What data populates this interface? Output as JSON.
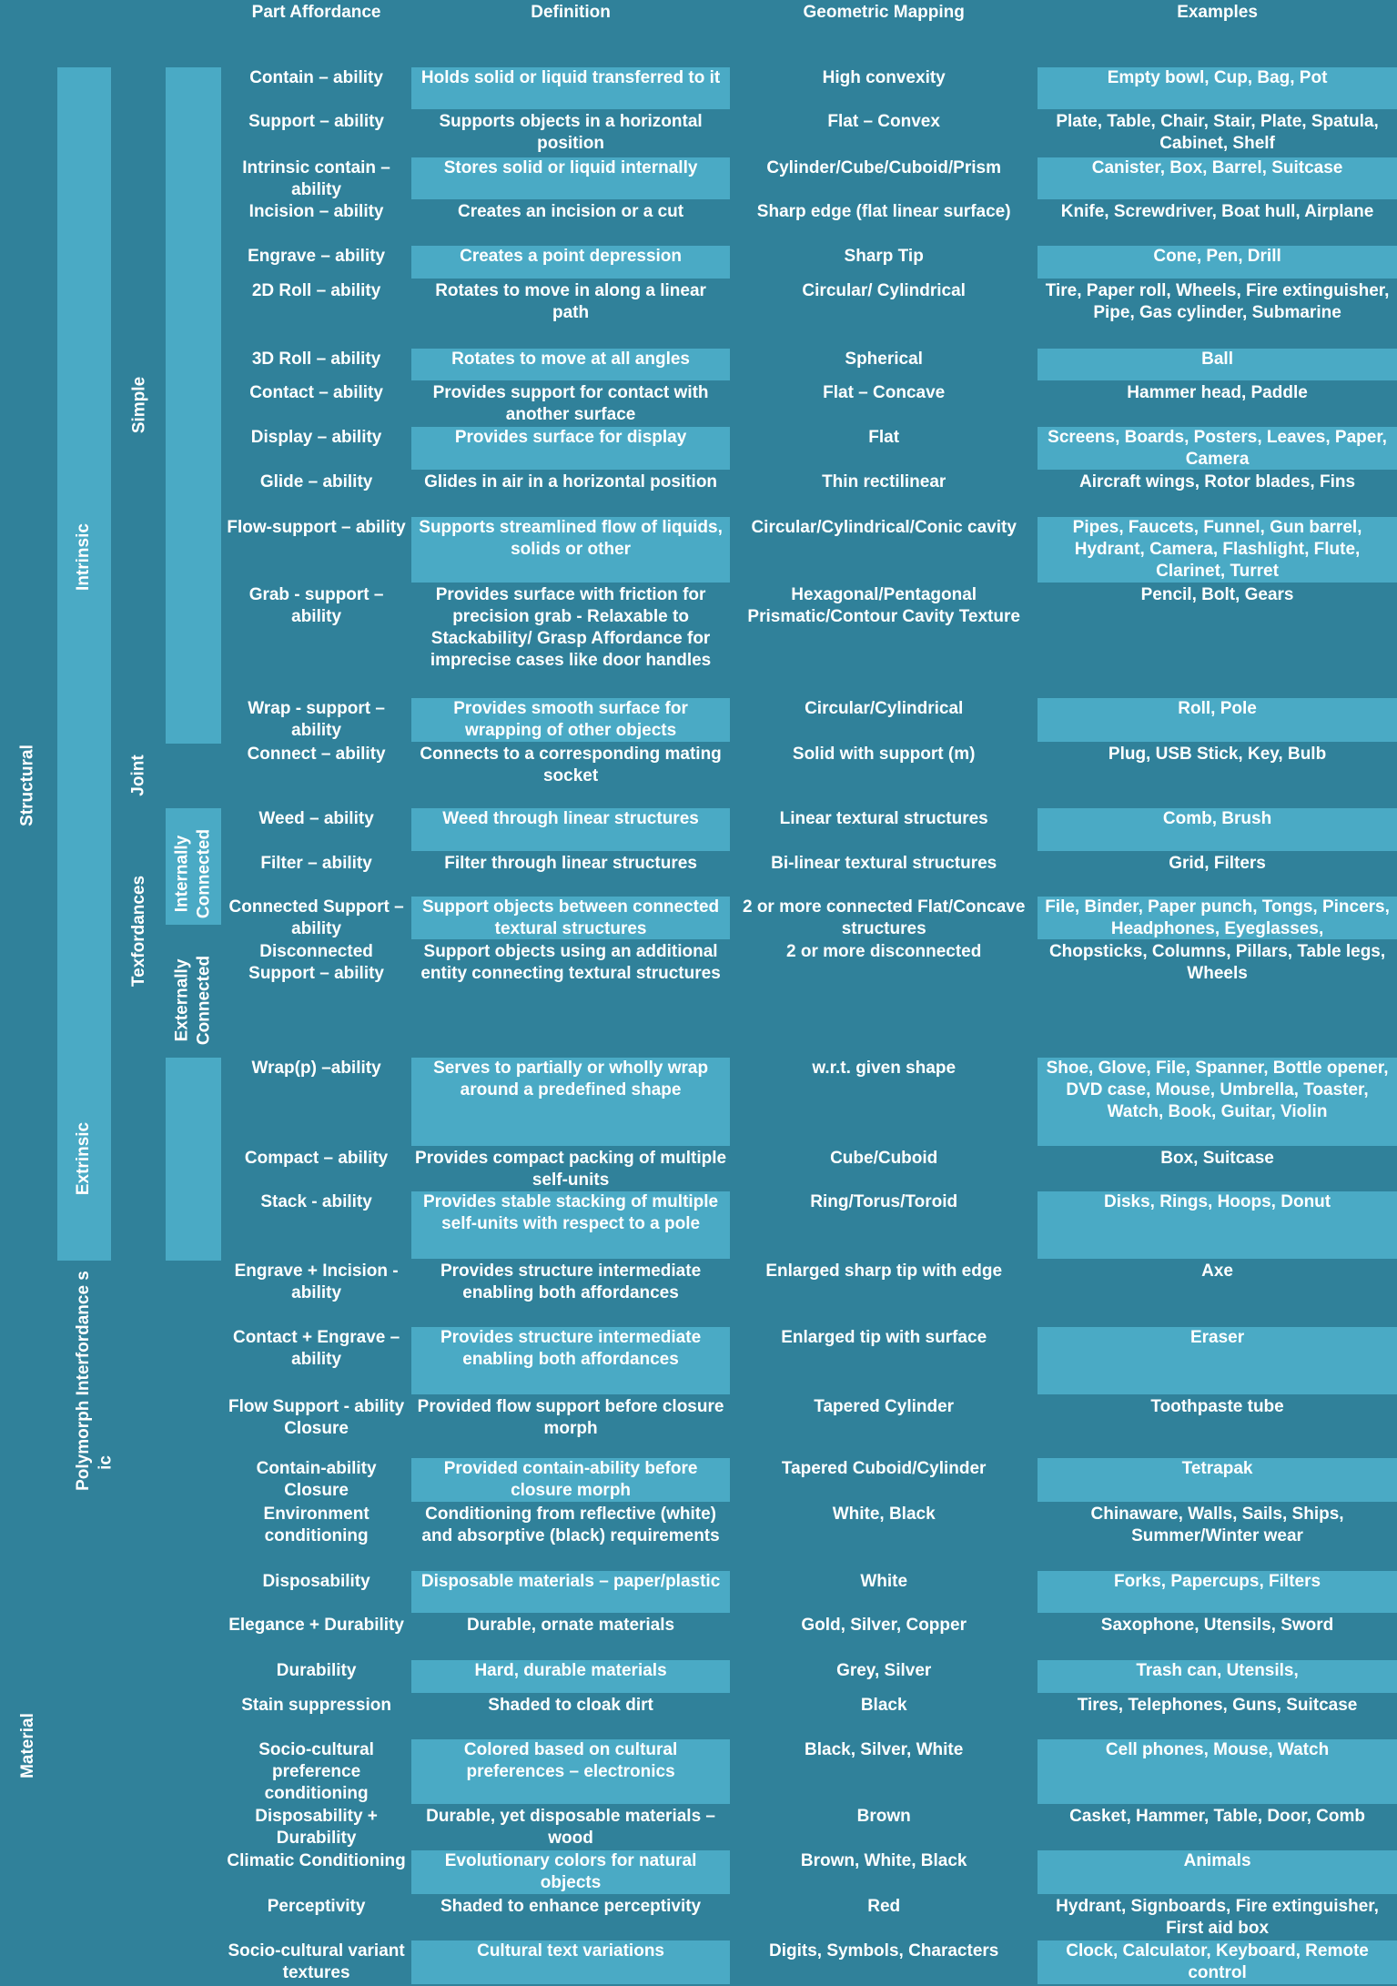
{
  "header": {
    "columns": [
      "Part Affordance",
      "Definition",
      "Geometric Mapping",
      "Examples"
    ]
  },
  "side_labels": {
    "level1": [
      "Structural",
      "Material"
    ],
    "level2": [
      "Intrinsic",
      "Extrinsic",
      "Polymorph Interfordance s",
      "ic"
    ],
    "level3": [
      "Simple",
      "Joint",
      "Texfordances"
    ],
    "level4": [
      "Internally Connected",
      "Externally Connected"
    ]
  },
  "rows": [
    {
      "part": "Contain – ability",
      "definition": "Holds solid or liquid transferred to it",
      "mapping": "High convexity",
      "examples": "Empty bowl, Cup, Bag, Pot"
    },
    {
      "part": "Support – ability",
      "definition": "Supports objects in a horizontal position",
      "mapping": "Flat – Convex",
      "examples": "Plate, Table, Chair, Stair, Plate, Spatula, Cabinet, Shelf"
    },
    {
      "part": "Intrinsic contain –ability",
      "definition": "Stores solid or liquid internally",
      "mapping": "Cylinder/Cube/Cuboid/Prism",
      "examples": "Canister, Box, Barrel, Suitcase"
    },
    {
      "part": "Incision – ability",
      "definition": "Creates an incision or a cut",
      "mapping": "Sharp edge (flat linear surface)",
      "examples": "Knife, Screwdriver, Boat hull, Airplane"
    },
    {
      "part": "Engrave – ability",
      "definition": "Creates a point depression",
      "mapping": "Sharp Tip",
      "examples": "Cone, Pen, Drill"
    },
    {
      "part": "2D Roll – ability",
      "definition": "Rotates to move in along a linear path",
      "mapping": "Circular/ Cylindrical",
      "examples": "Tire, Paper roll, Wheels, Fire extinguisher, Pipe, Gas cylinder, Submarine"
    },
    {
      "part": "3D Roll – ability",
      "definition": "Rotates to move at all angles",
      "mapping": "Spherical",
      "examples": "Ball"
    },
    {
      "part": "Contact – ability",
      "definition": "Provides support for contact with another surface",
      "mapping": "Flat – Concave",
      "examples": "Hammer head, Paddle"
    },
    {
      "part": "Display – ability",
      "definition": "Provides surface for display",
      "mapping": "Flat",
      "examples": "Screens, Boards, Posters, Leaves, Paper, Camera"
    },
    {
      "part": "Glide – ability",
      "definition": "Glides in air in a horizontal position",
      "mapping": "Thin rectilinear",
      "examples": "Aircraft wings, Rotor blades, Fins"
    },
    {
      "part": "Flow-support – ability",
      "definition": "Supports streamlined flow of liquids, solids or other",
      "mapping": "Circular/Cylindrical/Conic cavity",
      "examples": "Pipes, Faucets, Funnel, Gun barrel, Hydrant, Camera, Flashlight, Flute, Clarinet, Turret"
    },
    {
      "part": "Grab - support – ability",
      "definition": "Provides surface with friction for precision grab - Relaxable to Stackability/ Grasp Affordance for imprecise cases like door handles",
      "mapping": "Hexagonal/Pentagonal Prismatic/Contour Cavity Texture",
      "examples": "Pencil, Bolt, Gears"
    },
    {
      "part": "Wrap - support – ability",
      "definition": "Provides smooth surface for wrapping of other objects",
      "mapping": "Circular/Cylindrical",
      "examples": "Roll, Pole"
    },
    {
      "part": "Connect – ability",
      "definition": "Connects to a corresponding mating socket",
      "mapping": "Solid with support (m)",
      "examples": "Plug, USB Stick, Key, Bulb"
    },
    {
      "part": "Weed – ability",
      "definition": "Weed through linear structures",
      "mapping": "Linear textural structures",
      "examples": "Comb, Brush"
    },
    {
      "part": "Filter – ability",
      "definition": "Filter through linear structures",
      "mapping": "Bi-linear textural structures",
      "examples": "Grid, Filters"
    },
    {
      "part": "Connected Support – ability",
      "definition": "Support objects between connected textural structures",
      "mapping": "2 or more connected Flat/Concave structures",
      "examples": "File, Binder, Paper punch, Tongs, Pincers, Headphones, Eyeglasses,"
    },
    {
      "part": "Disconnected Support – ability",
      "definition": "Support objects using an additional entity connecting textural structures",
      "mapping": "2 or more disconnected",
      "examples": "Chopsticks, Columns, Pillars, Table legs, Wheels"
    },
    {
      "part": "Wrap(p) –ability",
      "definition": "Serves to partially or wholly wrap around a predefined shape",
      "mapping": "w.r.t. given shape",
      "examples": "Shoe, Glove, File, Spanner, Bottle opener, DVD case, Mouse, Umbrella, Toaster, Watch, Book, Guitar, Violin"
    },
    {
      "part": "Compact – ability",
      "definition": "Provides compact packing of multiple self-units",
      "mapping": "Cube/Cuboid",
      "examples": "Box, Suitcase"
    },
    {
      "part": "Stack - ability",
      "definition": "Provides stable stacking of multiple self-units with respect to a pole",
      "mapping": "Ring/Torus/Toroid",
      "examples": "Disks, Rings, Hoops, Donut"
    },
    {
      "part": "Engrave + Incision - ability",
      "definition": "Provides structure intermediate enabling both affordances",
      "mapping": "Enlarged sharp tip with edge",
      "examples": "Axe"
    },
    {
      "part": "Contact + Engrave – ability",
      "definition": "Provides structure intermediate enabling both affordances",
      "mapping": "Enlarged tip with surface",
      "examples": "Eraser"
    },
    {
      "part": "Flow Support - ability Closure",
      "definition": "Provided flow support before closure morph",
      "mapping": "Tapered Cylinder",
      "examples": "Toothpaste tube"
    },
    {
      "part": "Contain-ability Closure",
      "definition": "Provided contain-ability before closure morph",
      "mapping": "Tapered Cuboid/Cylinder",
      "examples": "Tetrapak"
    },
    {
      "part": "Environment conditioning",
      "definition": "Conditioning from reflective (white) and absorptive (black) requirements",
      "mapping": "White, Black",
      "examples": "Chinaware, Walls, Sails, Ships, Summer/Winter wear"
    },
    {
      "part": "Disposability",
      "definition": "Disposable materials – paper/plastic",
      "mapping": "White",
      "examples": "Forks, Papercups, Filters"
    },
    {
      "part": "Elegance + Durability",
      "definition": "Durable, ornate materials",
      "mapping": "Gold, Silver, Copper",
      "examples": "Saxophone, Utensils, Sword"
    },
    {
      "part": "Durability",
      "definition": "Hard, durable materials",
      "mapping": "Grey, Silver",
      "examples": "Trash can, Utensils,"
    },
    {
      "part": "Stain suppression",
      "definition": "Shaded to cloak dirt",
      "mapping": "Black",
      "examples": "Tires, Telephones, Guns, Suitcase"
    },
    {
      "part": "Socio-cultural preference conditioning",
      "definition": "Colored based on cultural preferences – electronics",
      "mapping": "Black, Silver, White",
      "examples": "Cell phones, Mouse, Watch"
    },
    {
      "part": "Disposability + Durability",
      "definition": "Durable, yet disposable materials – wood",
      "mapping": "Brown",
      "examples": "Casket, Hammer, Table, Door, Comb"
    },
    {
      "part": "Climatic Conditioning",
      "definition": "Evolutionary colors for natural objects",
      "mapping": "Brown, White, Black",
      "examples": "Animals"
    },
    {
      "part": "Perceptivity",
      "definition": "Shaded to enhance perceptivity",
      "mapping": "Red",
      "examples": "Hydrant, Signboards, Fire extinguisher, First aid box"
    },
    {
      "part": "Socio-cultural variant textures",
      "definition": "Cultural text variations",
      "mapping": "Digits, Symbols, Characters",
      "examples": "Clock, Calculator, Keyboard, Remote control"
    }
  ]
}
